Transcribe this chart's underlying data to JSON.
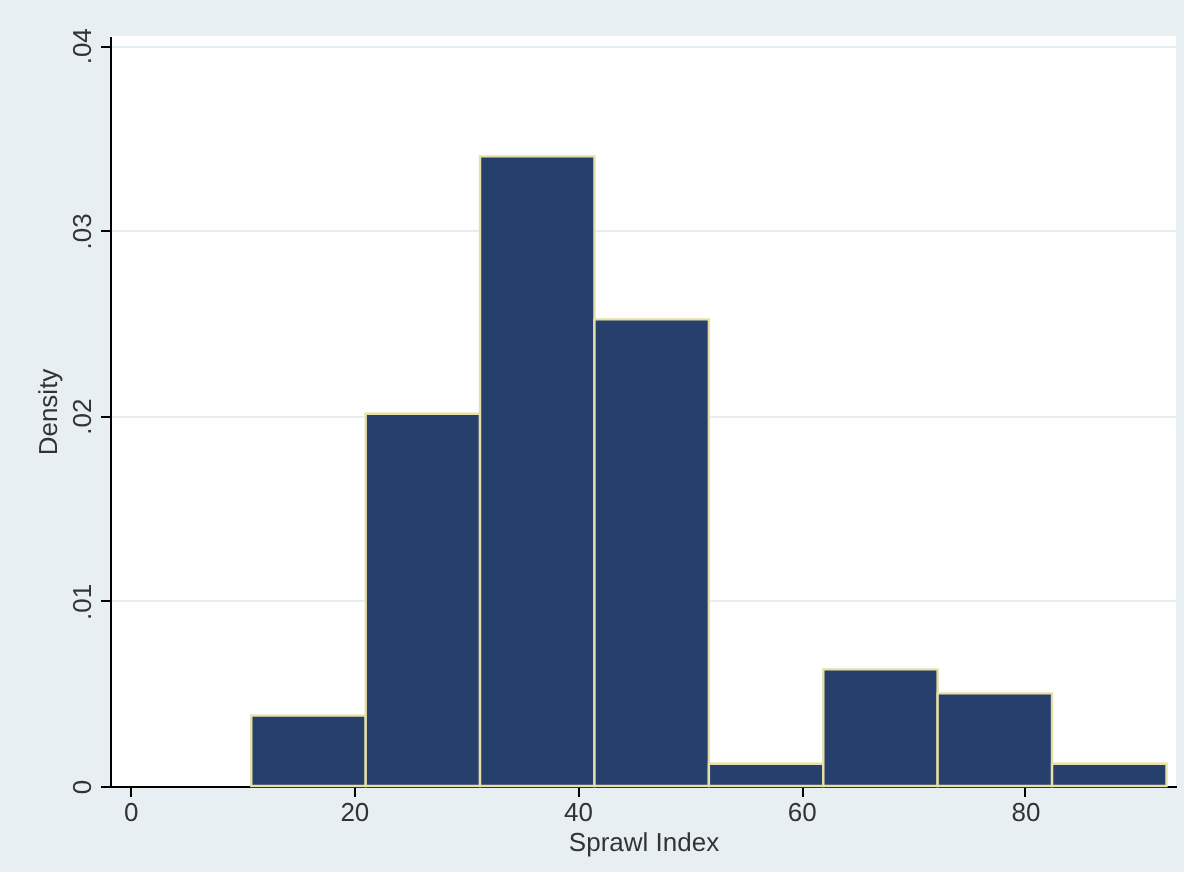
{
  "chart_data": {
    "type": "histogram",
    "xlabel": "Sprawl Index",
    "ylabel": "Density",
    "bins": [
      10.83,
      21.06,
      31.28,
      41.51,
      51.74,
      61.97,
      72.19,
      82.42,
      92.65
    ],
    "values": [
      0.0038,
      0.0201,
      0.034,
      0.0252,
      0.0012,
      0.0063,
      0.005,
      0.0012
    ],
    "color": "#263f6d",
    "xlim": [
      -1.8,
      93.5
    ],
    "xticks": [
      0,
      20,
      40,
      60,
      80
    ],
    "ylim": [
      0,
      0.0405
    ],
    "yticks": [
      0,
      {
        "value": 0.01,
        "label": ".01"
      },
      {
        "value": 0.02,
        "label": ".02"
      },
      {
        "value": 0.03,
        "label": ".03"
      },
      {
        "value": 0.04,
        "label": ".04"
      }
    ],
    "grid": "y"
  }
}
